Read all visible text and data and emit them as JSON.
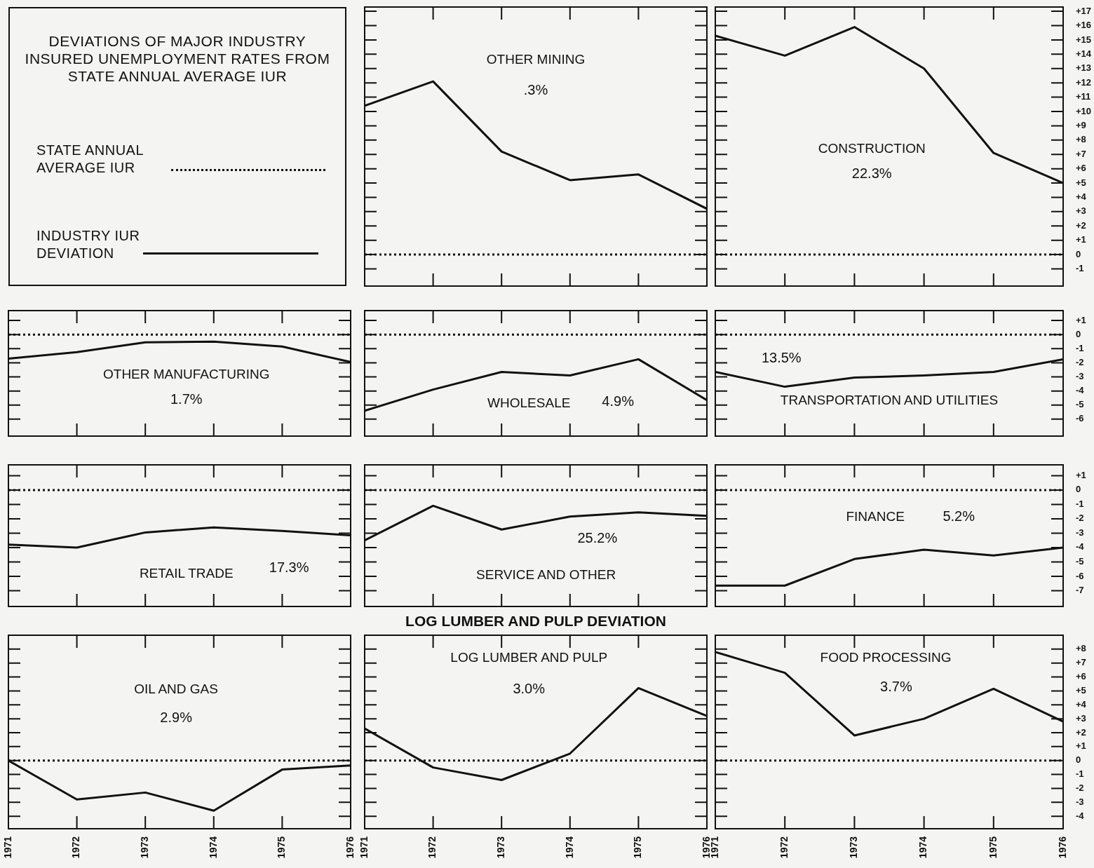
{
  "chart_data": [
    {
      "type": "other",
      "title": "DEVIATIONS OF MAJOR INDUSTRY INSURED UNEMPLOYMENT RATES FROM STATE ANNUAL AVERAGE IUR",
      "annotations": [
        "STATE ANNUAL AVERAGE IUR",
        "INDUSTRY IUR DEVIATION"
      ]
    },
    {
      "type": "line",
      "title": "OTHER MINING",
      "annotations": [
        ".3%"
      ],
      "x": [
        1971,
        1972,
        1973,
        1974,
        1975,
        1976
      ],
      "values": [
        10.4,
        12.1,
        7.2,
        5.2,
        5.6,
        3.2
      ],
      "color": "#111111",
      "xlim": [
        1971,
        1976
      ],
      "xticks": [
        1971,
        1972,
        1973,
        1974,
        1975,
        1976
      ],
      "ylim": [
        -2.2,
        17.3
      ],
      "yticks": [
        -1,
        0,
        1,
        2,
        3,
        4,
        5,
        6,
        7,
        8,
        9,
        10,
        11,
        12,
        13,
        14,
        15,
        16,
        17
      ],
      "ref_lines": [
        {
          "axis": "y",
          "value": 0,
          "color": "#111111",
          "line_style": "dotted"
        }
      ],
      "tick_labels": false
    },
    {
      "type": "line",
      "title": "CONSTRUCTION",
      "annotations": [
        "22.3%"
      ],
      "x": [
        1971,
        1972,
        1973,
        1974,
        1975,
        1976
      ],
      "values": [
        15.3,
        13.9,
        15.9,
        13,
        7.1,
        5
      ],
      "color": "#111111",
      "xlim": [
        1971,
        1976
      ],
      "xticks": [
        1971,
        1972,
        1973,
        1974,
        1975,
        1976
      ],
      "ylim": [
        -2.2,
        17.3
      ],
      "yticks": [
        {
          "value": -1,
          "label": "-1"
        },
        0,
        {
          "value": 1,
          "label": "+1"
        },
        {
          "value": 2,
          "label": "+2"
        },
        {
          "value": 3,
          "label": "+3"
        },
        {
          "value": 4,
          "label": "+4"
        },
        {
          "value": 5,
          "label": "+5"
        },
        {
          "value": 6,
          "label": "+6"
        },
        {
          "value": 7,
          "label": "+7"
        },
        {
          "value": 8,
          "label": "+8"
        },
        {
          "value": 9,
          "label": "+9"
        },
        {
          "value": 10,
          "label": "+10"
        },
        {
          "value": 11,
          "label": "+11"
        },
        {
          "value": 12,
          "label": "+12"
        },
        {
          "value": 13,
          "label": "+13"
        },
        {
          "value": 14,
          "label": "+14"
        },
        {
          "value": 15,
          "label": "+15"
        },
        {
          "value": 16,
          "label": "+16"
        },
        {
          "value": 17,
          "label": "+17"
        }
      ],
      "ref_lines": [
        {
          "axis": "y",
          "value": 0,
          "color": "#111111",
          "line_style": "dotted"
        }
      ],
      "tick_labels": "y"
    },
    {
      "type": "line",
      "title": "OTHER MANUFACTURING",
      "annotations": [
        "1.7%"
      ],
      "x": [
        1971,
        1972,
        1973,
        1974,
        1975,
        1976
      ],
      "values": [
        -1.7,
        -1.25,
        -0.55,
        -0.5,
        -0.85,
        -1.95
      ],
      "color": "#111111",
      "xlim": [
        1971,
        1976
      ],
      "xticks": [
        1971,
        1972,
        1973,
        1974,
        1975,
        1976
      ],
      "ylim": [
        -7.2,
        1.7
      ],
      "yticks": [
        -6,
        -5,
        -4,
        -3,
        -2,
        -1,
        0,
        1
      ],
      "ref_lines": [
        {
          "axis": "y",
          "value": 0,
          "color": "#111111",
          "line_style": "dotted"
        }
      ],
      "tick_labels": false
    },
    {
      "type": "line",
      "title": "WHOLESALE",
      "annotations": [
        "4.9%"
      ],
      "x": [
        1971,
        1972,
        1973,
        1974,
        1975,
        1976
      ],
      "values": [
        -5.4,
        -3.9,
        -2.65,
        -2.9,
        -1.75,
        -4.65
      ],
      "color": "#111111",
      "xlim": [
        1971,
        1976
      ],
      "xticks": [
        1971,
        1972,
        1973,
        1974,
        1975,
        1976
      ],
      "ylim": [
        -7.2,
        1.7
      ],
      "yticks": [
        -6,
        -5,
        -4,
        -3,
        -2,
        -1,
        0,
        1
      ],
      "ref_lines": [
        {
          "axis": "y",
          "value": 0,
          "color": "#111111",
          "line_style": "dotted"
        }
      ],
      "tick_labels": false
    },
    {
      "type": "line",
      "title": "TRANSPORTATION AND UTILITIES",
      "annotations": [
        "13.5%"
      ],
      "x": [
        1971,
        1972,
        1973,
        1974,
        1975,
        1976
      ],
      "values": [
        -2.65,
        -3.7,
        -3.05,
        -2.9,
        -2.65,
        -1.75
      ],
      "color": "#111111",
      "xlim": [
        1971,
        1976
      ],
      "xticks": [
        1971,
        1972,
        1973,
        1974,
        1975,
        1976
      ],
      "ylim": [
        -7.2,
        1.7
      ],
      "yticks": [
        -6,
        -5,
        -4,
        -3,
        -2,
        -1,
        0,
        {
          "value": 1,
          "label": "+1"
        }
      ],
      "ref_lines": [
        {
          "axis": "y",
          "value": 0,
          "color": "#111111",
          "line_style": "dotted"
        }
      ],
      "tick_labels": "y"
    },
    {
      "type": "line",
      "title": "RETAIL TRADE",
      "annotations": [
        "17.3%"
      ],
      "x": [
        1971,
        1972,
        1973,
        1974,
        1975,
        1976
      ],
      "values": [
        -3.8,
        -4,
        -2.95,
        -2.6,
        -2.85,
        -3.15
      ],
      "color": "#111111",
      "xlim": [
        1971,
        1976
      ],
      "xticks": [
        1971,
        1972,
        1973,
        1974,
        1975,
        1976
      ],
      "ylim": [
        -8.1,
        1.75
      ],
      "yticks": [
        -7,
        -6,
        -5,
        -4,
        -3,
        -2,
        -1,
        0,
        1
      ],
      "ref_lines": [
        {
          "axis": "y",
          "value": 0,
          "color": "#111111",
          "line_style": "dotted"
        }
      ],
      "tick_labels": false
    },
    {
      "type": "line",
      "title": "SERVICE AND OTHER",
      "annotations": [
        "25.2%"
      ],
      "x": [
        1971,
        1972,
        1973,
        1974,
        1975,
        1976
      ],
      "values": [
        -3.5,
        -1.1,
        -2.75,
        -1.85,
        -1.55,
        -1.8
      ],
      "color": "#111111",
      "xlim": [
        1971,
        1976
      ],
      "xticks": [
        1971,
        1972,
        1973,
        1974,
        1975,
        1976
      ],
      "ylim": [
        -8.1,
        1.75
      ],
      "yticks": [
        -7,
        -6,
        -5,
        -4,
        -3,
        -2,
        -1,
        0,
        1
      ],
      "ref_lines": [
        {
          "axis": "y",
          "value": 0,
          "color": "#111111",
          "line_style": "dotted"
        }
      ],
      "tick_labels": false
    },
    {
      "type": "line",
      "title": "FINANCE",
      "annotations": [
        "5.2%"
      ],
      "x": [
        1971,
        1972,
        1973,
        1974,
        1975,
        1976
      ],
      "values": [
        -6.65,
        -6.65,
        -4.8,
        -4.15,
        -4.55,
        -4
      ],
      "color": "#111111",
      "xlim": [
        1971,
        1976
      ],
      "xticks": [
        1971,
        1972,
        1973,
        1974,
        1975,
        1976
      ],
      "ylim": [
        -8.1,
        1.75
      ],
      "yticks": [
        -7,
        -6,
        -5,
        -4,
        -3,
        -2,
        -1,
        0,
        {
          "value": 1,
          "label": "+1"
        }
      ],
      "ref_lines": [
        {
          "axis": "y",
          "value": 0,
          "color": "#111111",
          "line_style": "dotted"
        }
      ],
      "tick_labels": "y"
    },
    {
      "type": "line",
      "title": "OIL AND GAS",
      "annotations": [
        "2.9%"
      ],
      "x": [
        1971,
        1972,
        1973,
        1974,
        1975,
        1976
      ],
      "values": [
        0,
        -2.8,
        -2.3,
        -3.6,
        -0.65,
        -0.35
      ],
      "color": "#111111",
      "xlim": [
        1971,
        1976
      ],
      "xticks": [
        1971,
        1972,
        1973,
        1974,
        1975,
        1976
      ],
      "ylim": [
        -4.9,
        9
      ],
      "yticks": [
        -4,
        -3,
        -2,
        -1,
        0,
        1,
        2,
        3,
        4,
        5,
        6,
        7,
        8
      ],
      "ref_lines": [
        {
          "axis": "y",
          "value": 0,
          "color": "#111111",
          "line_style": "dotted"
        }
      ],
      "tick_labels": "x"
    },
    {
      "type": "line",
      "title": "LOG LUMBER AND PULP DEVIATION",
      "subtitle": "LOG LUMBER AND PULP",
      "annotations": [
        "3.0%"
      ],
      "x": [
        1971,
        1972,
        1973,
        1974,
        1975,
        1976
      ],
      "values": [
        2.3,
        -0.5,
        -1.4,
        0.5,
        5.2,
        3.2
      ],
      "color": "#111111",
      "xlim": [
        1971,
        1976
      ],
      "xticks": [
        1971,
        1972,
        1973,
        1974,
        1975,
        1976
      ],
      "ylim": [
        -4.9,
        9
      ],
      "yticks": [
        -4,
        -3,
        -2,
        -1,
        0,
        1,
        2,
        3,
        4,
        5,
        6,
        7,
        8
      ],
      "ref_lines": [
        {
          "axis": "y",
          "value": 0,
          "color": "#111111",
          "line_style": "dotted"
        }
      ],
      "tick_labels": "x"
    },
    {
      "type": "line",
      "title": "FOOD PROCESSING",
      "annotations": [
        "3.7%"
      ],
      "x": [
        1971,
        1972,
        1973,
        1974,
        1975,
        1976
      ],
      "values": [
        7.8,
        6.3,
        1.8,
        3,
        5.15,
        2.8
      ],
      "color": "#111111",
      "xlim": [
        1971,
        1976
      ],
      "xticks": [
        1971,
        1972,
        1973,
        1974,
        1975,
        1976
      ],
      "ylim": [
        -4.9,
        9
      ],
      "yticks": [
        -4,
        -3,
        -2,
        -1,
        0,
        {
          "value": 1,
          "label": "+1"
        },
        {
          "value": 2,
          "label": "+2"
        },
        {
          "value": 3,
          "label": "+3"
        },
        {
          "value": 4,
          "label": "+4"
        },
        {
          "value": 5,
          "label": "+5"
        },
        {
          "value": 6,
          "label": "+6"
        },
        {
          "value": 7,
          "label": "+7"
        },
        {
          "value": 8,
          "label": "+8"
        }
      ],
      "ref_lines": [
        {
          "axis": "y",
          "value": 0,
          "color": "#111111",
          "line_style": "dotted"
        }
      ]
    }
  ]
}
